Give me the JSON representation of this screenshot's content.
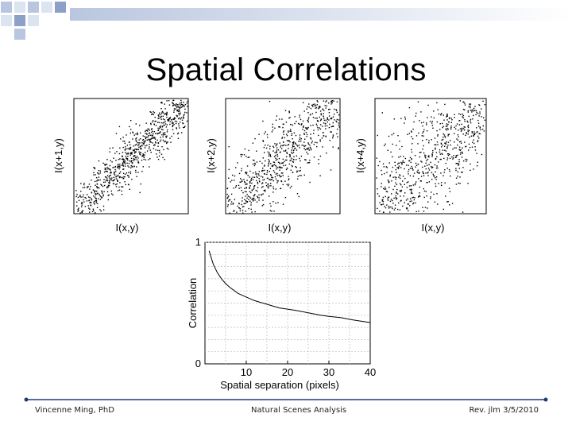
{
  "slide": {
    "title": "Spatial Correlations"
  },
  "footer": {
    "author": "Vincenne Ming, PhD",
    "topic": "Natural Scenes Analysis",
    "revision": "Rev. jlm 3/5/2010"
  },
  "scatter_panels": [
    {
      "ylabel": "I(x+1,y)",
      "xlabel": "I(x,y)",
      "spread": 0.08
    },
    {
      "ylabel": "I(x+2,y)",
      "xlabel": "I(x,y)",
      "spread": 0.13
    },
    {
      "ylabel": "I(x+4,y)",
      "xlabel": "I(x,y)",
      "spread": 0.18
    }
  ],
  "chart_data": {
    "type": "line",
    "xlabel": "Spatial separation (pixels)",
    "ylabel": "Correlation",
    "xlim": [
      0,
      40
    ],
    "ylim": [
      0,
      1
    ],
    "xticks": [
      10,
      20,
      30,
      40
    ],
    "yticks": [
      0,
      1
    ],
    "grid": true,
    "x": [
      1,
      2,
      3,
      4,
      5,
      6,
      8,
      10,
      12,
      15,
      18,
      20,
      22,
      25,
      28,
      30,
      33,
      36,
      40
    ],
    "y": [
      0.93,
      0.82,
      0.75,
      0.7,
      0.66,
      0.63,
      0.58,
      0.55,
      0.52,
      0.49,
      0.46,
      0.45,
      0.44,
      0.42,
      0.4,
      0.39,
      0.38,
      0.36,
      0.34
    ]
  },
  "colors": {
    "deco_light": "#dde4f1",
    "deco_mid": "#b9c6df",
    "deco_dark": "#8da0c8",
    "footer_line": "#1d3c7a",
    "grid": "#bdbdbd"
  }
}
